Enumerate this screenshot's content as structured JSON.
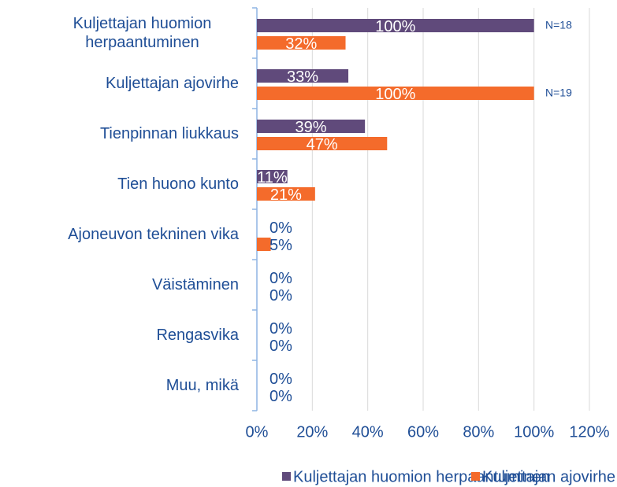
{
  "chart_data": {
    "type": "bar",
    "orientation": "horizontal",
    "categories": [
      "Kuljettajan huomion herpaantuminen",
      "Kuljettajan ajovirhe",
      "Tienpinnan liukkaus",
      "Tien huono kunto",
      "Ajoneuvon tekninen vika",
      "Väistäminen",
      "Rengasvika",
      "Muu, mikä"
    ],
    "series": [
      {
        "name": "Kuljettajan huomion herpaantuminen",
        "color": "#604a7b",
        "values": [
          100,
          33,
          39,
          11,
          0,
          0,
          0,
          0
        ],
        "value_labels": [
          "100%",
          "33%",
          "39%",
          "11%",
          "0%",
          "0%",
          "0%",
          "0%"
        ]
      },
      {
        "name": "Kuljettajan ajovirhe",
        "color": "#f46b2b",
        "values": [
          32,
          100,
          47,
          21,
          5,
          0,
          0,
          0
        ],
        "value_labels": [
          "32%",
          "100%",
          "47%",
          "21%",
          "5%",
          "0%",
          "0%",
          "0%"
        ]
      }
    ],
    "annotations": [
      "N=18",
      "N=19"
    ],
    "xlim": [
      0,
      120
    ],
    "xticks": [
      {
        "value": 0,
        "label": "0%"
      },
      {
        "value": 20,
        "label": "20%"
      },
      {
        "value": 40,
        "label": "40%"
      },
      {
        "value": 60,
        "label": "60%"
      },
      {
        "value": 80,
        "label": "80%"
      },
      {
        "value": 100,
        "label": "100%"
      },
      {
        "value": 120,
        "label": "120%"
      }
    ],
    "grid": true,
    "legend": "bottom"
  }
}
